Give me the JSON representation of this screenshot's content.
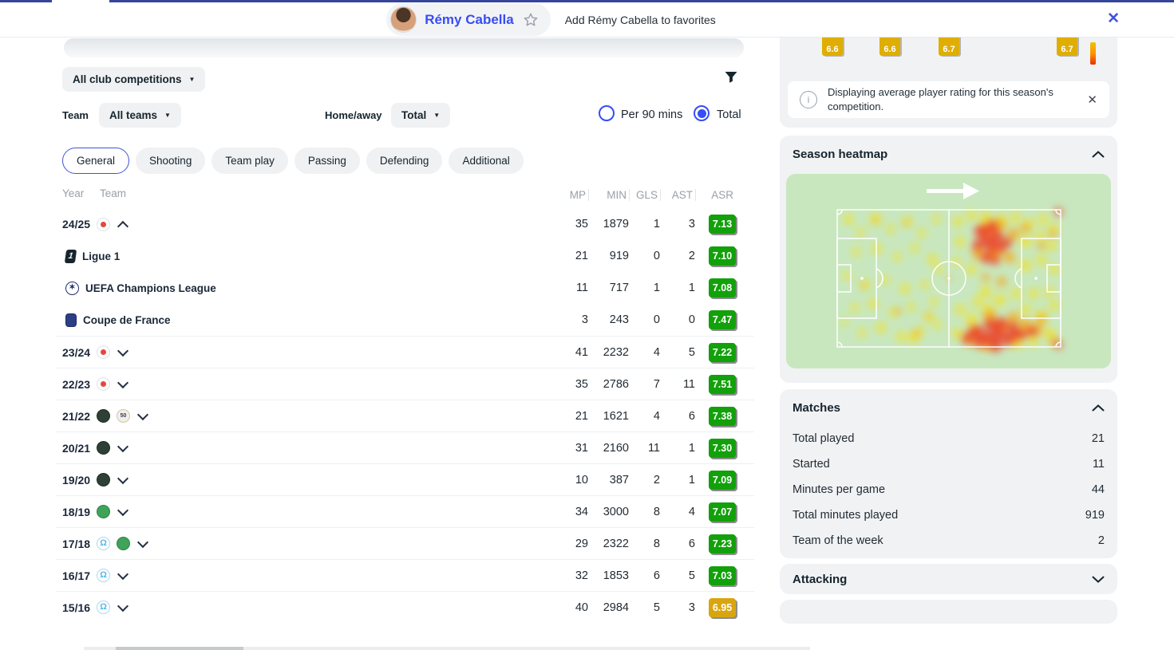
{
  "header": {
    "player_name": "Rémy Cabella",
    "favorites_hint": "Add Rémy Cabella to favorites"
  },
  "filters": {
    "competition_dropdown": "All club competitions",
    "team_label": "Team",
    "team_dropdown": "All teams",
    "home_away_label": "Home/away",
    "home_away_dropdown": "Total",
    "per90_option": "Per 90 mins",
    "total_option": "Total"
  },
  "tabs": [
    {
      "label": "General",
      "active": true
    },
    {
      "label": "Shooting"
    },
    {
      "label": "Team play"
    },
    {
      "label": "Passing"
    },
    {
      "label": "Defending"
    },
    {
      "label": "Additional"
    }
  ],
  "table": {
    "col_year": "Year",
    "col_team": "Team",
    "stat_cols": [
      "MP",
      "MIN",
      "GLS",
      "AST",
      "ASR"
    ],
    "rows": [
      {
        "kind": "year",
        "year": "24/25",
        "teams": [
          "lille"
        ],
        "chevron": "up",
        "mp": "35",
        "min": "1879",
        "gls": "1",
        "ast": "3",
        "asr": "7.13",
        "asr_tone": "green"
      },
      {
        "kind": "competition",
        "label": "Ligue 1",
        "logo": "ligue-1",
        "mp": "21",
        "min": "919",
        "gls": "0",
        "ast": "2",
        "asr": "7.10",
        "asr_tone": "green"
      },
      {
        "kind": "competition",
        "label": "UEFA Champions League",
        "logo": "uefa-champions-league",
        "mp": "11",
        "min": "717",
        "gls": "1",
        "ast": "1",
        "asr": "7.08",
        "asr_tone": "green"
      },
      {
        "kind": "competition",
        "label": "Coupe de France",
        "logo": "coupe-de-france",
        "mp": "3",
        "min": "243",
        "gls": "0",
        "ast": "0",
        "asr": "7.47",
        "asr_tone": "green"
      },
      {
        "kind": "year",
        "year": "23/24",
        "teams": [
          "lille"
        ],
        "chevron": "down",
        "mp": "41",
        "min": "2232",
        "gls": "4",
        "ast": "5",
        "asr": "7.22",
        "asr_tone": "green"
      },
      {
        "kind": "year",
        "year": "22/23",
        "teams": [
          "lille"
        ],
        "chevron": "down",
        "mp": "35",
        "min": "2786",
        "gls": "7",
        "ast": "11",
        "asr": "7.51",
        "asr_tone": "green"
      },
      {
        "kind": "year",
        "year": "21/22",
        "teams": [
          "krasnodar",
          "montpellier"
        ],
        "chevron": "down",
        "mp": "21",
        "min": "1621",
        "gls": "4",
        "ast": "6",
        "asr": "7.38",
        "asr_tone": "green"
      },
      {
        "kind": "year",
        "year": "20/21",
        "teams": [
          "krasnodar"
        ],
        "chevron": "down",
        "mp": "31",
        "min": "2160",
        "gls": "11",
        "ast": "1",
        "asr": "7.30",
        "asr_tone": "green"
      },
      {
        "kind": "year",
        "year": "19/20",
        "teams": [
          "krasnodar"
        ],
        "chevron": "down",
        "mp": "10",
        "min": "387",
        "gls": "2",
        "ast": "1",
        "asr": "7.09",
        "asr_tone": "green"
      },
      {
        "kind": "year",
        "year": "18/19",
        "teams": [
          "saint-etienne"
        ],
        "chevron": "down",
        "mp": "34",
        "min": "3000",
        "gls": "8",
        "ast": "4",
        "asr": "7.07",
        "asr_tone": "green"
      },
      {
        "kind": "year",
        "year": "17/18",
        "teams": [
          "marseille",
          "saint-etienne"
        ],
        "chevron": "down",
        "mp": "29",
        "min": "2322",
        "gls": "8",
        "ast": "6",
        "asr": "7.23",
        "asr_tone": "green"
      },
      {
        "kind": "year",
        "year": "16/17",
        "teams": [
          "marseille"
        ],
        "chevron": "down",
        "mp": "32",
        "min": "1853",
        "gls": "6",
        "ast": "5",
        "asr": "7.03",
        "asr_tone": "green"
      },
      {
        "kind": "year",
        "year": "15/16",
        "teams": [
          "marseille"
        ],
        "chevron": "down",
        "mp": "40",
        "min": "2984",
        "gls": "5",
        "ast": "3",
        "asr": "6.95",
        "asr_tone": "gold"
      }
    ]
  },
  "icons": {
    "ligue-1": "1",
    "uefa-champions-league": "✶",
    "marseille": "Ω",
    "montpellier": "50"
  },
  "sidebar": {
    "partial_ratings": [
      "6.6",
      "6.6",
      "6.7",
      "6.7"
    ],
    "rating_note": "Displaying average player rating for this season's competition.",
    "heatmap_title": "Season heatmap",
    "matches_title": "Matches",
    "matches": [
      {
        "label": "Total played",
        "value": "21"
      },
      {
        "label": "Started",
        "value": "11"
      },
      {
        "label": "Minutes per game",
        "value": "44"
      },
      {
        "label": "Total minutes played",
        "value": "919"
      },
      {
        "label": "Team of the week",
        "value": "2"
      }
    ],
    "attacking_title": "Attacking"
  },
  "colors": {
    "accent_blue": "#374df5",
    "rating_green": "#12a10b",
    "rating_gold": "#d9a50f",
    "heatmap_bg": "#c8e7bf",
    "badge_cut_gold": "#dfae00"
  }
}
